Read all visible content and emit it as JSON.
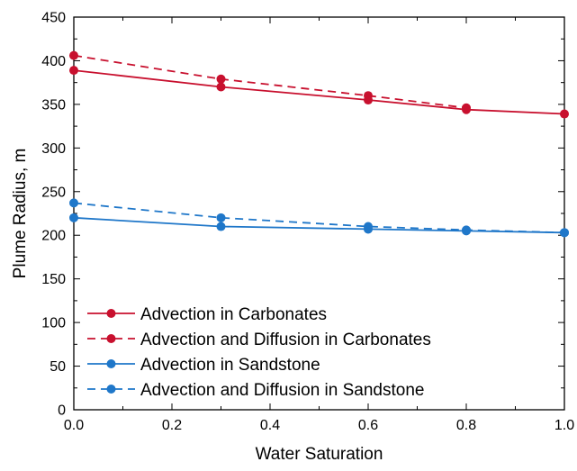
{
  "chart_data": {
    "type": "line",
    "xlabel": "Water Saturation",
    "ylabel": "Plume Radius, m",
    "xlim": [
      0,
      1
    ],
    "ylim": [
      0,
      450
    ],
    "x_ticks": [
      "0.0",
      "0.2",
      "0.4",
      "0.6",
      "0.8",
      "1.0"
    ],
    "y_ticks": [
      "0",
      "50",
      "100",
      "150",
      "200",
      "250",
      "300",
      "350",
      "400",
      "450"
    ],
    "grid": false,
    "legend_position": "bottom-left",
    "series": [
      {
        "name": "Advection in Carbonates",
        "color": "#c8102e",
        "dash": "solid",
        "points": [
          [
            0,
            389
          ],
          [
            0.3,
            370
          ],
          [
            0.6,
            355
          ],
          [
            0.8,
            344
          ],
          [
            1.0,
            339
          ]
        ]
      },
      {
        "name": "Advection and Diffusion in Carbonates",
        "color": "#c8102e",
        "dash": "dashed",
        "points": [
          [
            0,
            406
          ],
          [
            0.3,
            379
          ],
          [
            0.6,
            360
          ],
          [
            0.8,
            346
          ]
        ]
      },
      {
        "name": "Advection in Sandstone",
        "color": "#1f77c9",
        "dash": "solid",
        "points": [
          [
            0,
            220
          ],
          [
            0.3,
            210
          ],
          [
            0.6,
            207
          ],
          [
            0.8,
            205
          ],
          [
            1.0,
            203
          ]
        ]
      },
      {
        "name": "Advection and Diffusion in Sandstone",
        "color": "#1f77c9",
        "dash": "dashed",
        "points": [
          [
            0,
            237
          ],
          [
            0.3,
            220
          ],
          [
            0.6,
            210
          ],
          [
            0.8,
            206
          ],
          [
            1.0,
            203
          ]
        ]
      }
    ]
  }
}
